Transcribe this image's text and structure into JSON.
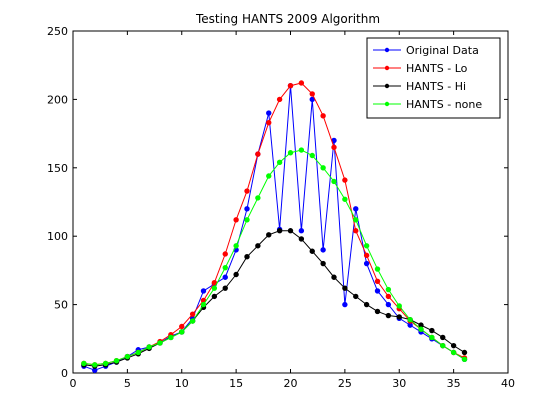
{
  "chart_data": {
    "type": "line",
    "title": "Testing HANTS 2009 Algorithm",
    "xlabel": "",
    "ylabel": "",
    "xlim": [
      0,
      40
    ],
    "ylim": [
      0,
      250
    ],
    "xticks": [
      0,
      5,
      10,
      15,
      20,
      25,
      30,
      35,
      40
    ],
    "yticks": [
      0,
      50,
      100,
      150,
      200,
      250
    ],
    "xtick_labels": [
      "0",
      "5",
      "10",
      "15",
      "20",
      "25",
      "30",
      "35",
      "40"
    ],
    "ytick_labels": [
      "0",
      "50",
      "100",
      "150",
      "200",
      "250"
    ],
    "grid": false,
    "legend_position": "top-right",
    "x": [
      1,
      2,
      3,
      4,
      5,
      6,
      7,
      8,
      9,
      10,
      11,
      12,
      13,
      14,
      15,
      16,
      17,
      18,
      19,
      20,
      21,
      22,
      23,
      24,
      25,
      26,
      27,
      28,
      29,
      30,
      31,
      32,
      33,
      34,
      35,
      36
    ],
    "series": [
      {
        "name": "Original Data",
        "color": "#0000ff",
        "values": [
          5,
          2,
          5,
          8,
          12,
          17,
          19,
          22,
          27,
          30,
          40,
          60,
          65,
          70,
          90,
          120,
          160,
          190,
          105,
          210,
          104,
          200,
          90,
          170,
          50,
          120,
          80,
          60,
          50,
          40,
          35,
          30,
          25,
          20,
          15,
          10
        ]
      },
      {
        "name": "HANTS - Lo",
        "color": "#ff0000",
        "values": [
          7,
          6,
          7,
          9,
          12,
          15,
          19,
          23,
          28,
          34,
          43,
          53,
          66,
          87,
          112,
          133,
          160,
          183,
          200,
          210,
          212,
          204,
          188,
          165,
          141,
          104,
          86,
          67,
          56,
          47,
          38,
          32,
          26,
          20,
          15,
          11
        ]
      },
      {
        "name": "HANTS - Hi",
        "color": "#000000",
        "values": [
          6,
          5,
          6,
          8,
          11,
          14,
          18,
          22,
          26,
          30,
          38,
          48,
          56,
          62,
          72,
          85,
          93,
          101,
          104,
          104,
          98,
          89,
          80,
          70,
          62,
          56,
          50,
          45,
          42,
          41,
          39,
          35,
          31,
          26,
          20,
          15
        ]
      },
      {
        "name": "HANTS - none",
        "color": "#00ff00",
        "values": [
          7,
          6,
          7,
          9,
          12,
          15,
          19,
          22,
          26,
          30,
          38,
          50,
          62,
          77,
          93,
          112,
          128,
          144,
          154,
          161,
          163,
          159,
          150,
          140,
          127,
          112,
          93,
          76,
          61,
          49,
          39,
          32,
          26,
          20,
          15,
          10
        ]
      }
    ]
  }
}
